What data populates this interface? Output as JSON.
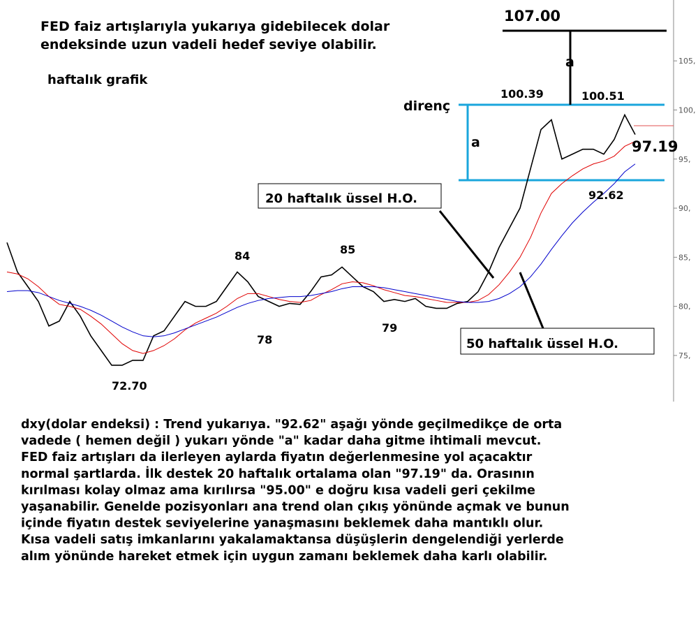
{
  "chart_data": {
    "type": "line",
    "title_lines": [
      "FED faiz artışlarıyla yukarıya gidebilecek dolar",
      "endeksinde uzun vadeli hedef seviye olabilir."
    ],
    "series": [
      {
        "color": "#000000",
        "values": [
          86.5,
          83.5,
          82,
          80.5,
          78,
          78.5,
          80.5,
          79,
          77,
          75.5,
          74,
          74,
          74.5,
          74.5,
          77,
          77.5,
          79,
          80.5,
          80,
          80,
          80.5,
          82,
          83.5,
          82.5,
          81,
          80.5,
          80,
          80.3,
          80.2,
          81.5,
          83,
          83.2,
          84,
          83,
          82,
          81.5,
          80.5,
          80.7,
          80.5,
          80.8,
          80,
          79.8,
          79.8,
          80.3,
          80.5,
          81.5,
          83.5,
          86,
          88,
          90,
          94,
          98,
          99,
          95,
          95.5,
          96,
          96,
          95.5,
          97,
          99.5,
          97.5
        ]
      },
      {
        "color": "#e00000",
        "values": [
          83.5,
          83.3,
          82.8,
          82,
          81,
          80.2,
          80,
          79.7,
          79,
          78.2,
          77.2,
          76.2,
          75.5,
          75.2,
          75.5,
          76,
          76.7,
          77.6,
          78.3,
          78.8,
          79.3,
          80,
          80.8,
          81.3,
          81.3,
          81,
          80.7,
          80.5,
          80.4,
          80.6,
          81.2,
          81.7,
          82.3,
          82.5,
          82.4,
          82.1,
          81.7,
          81.4,
          81.1,
          81,
          80.8,
          80.6,
          80.4,
          80.4,
          80.4,
          80.6,
          81.2,
          82.2,
          83.5,
          85,
          87,
          89.5,
          91.5,
          92.5,
          93.3,
          94,
          94.5,
          94.8,
          95.3,
          96.3,
          96.8
        ]
      },
      {
        "color": "#0000cc",
        "values": [
          81.5,
          81.6,
          81.6,
          81.4,
          81,
          80.6,
          80.3,
          80,
          79.6,
          79.1,
          78.5,
          77.9,
          77.4,
          77,
          76.9,
          77,
          77.3,
          77.7,
          78.1,
          78.5,
          78.9,
          79.4,
          79.9,
          80.3,
          80.6,
          80.8,
          80.9,
          81,
          81,
          81.1,
          81.3,
          81.5,
          81.8,
          82,
          82,
          82,
          81.9,
          81.7,
          81.5,
          81.3,
          81.1,
          80.9,
          80.7,
          80.5,
          80.4,
          80.4,
          80.5,
          80.8,
          81.3,
          82,
          83,
          84.3,
          85.8,
          87.2,
          88.5,
          89.6,
          90.6,
          91.5,
          92.5,
          93.7,
          94.5
        ]
      }
    ],
    "ylim": [
      70.3,
      111.2
    ],
    "yticks": [
      {
        "value": 75,
        "label": "75,"
      },
      {
        "value": 80,
        "label": "80,"
      },
      {
        "value": 85,
        "label": "85,"
      },
      {
        "value": 90,
        "label": "90,"
      },
      {
        "value": 95,
        "label": "95,"
      },
      {
        "value": 100,
        "label": "100,"
      },
      {
        "value": 105,
        "label": "105,"
      }
    ],
    "annotations": [
      "haftalık grafik",
      "direnç",
      "a",
      "a",
      "107.00",
      "100.39",
      "100.51",
      "97.19",
      "92.62",
      "20 haftalık üssel H.O.",
      "50 haftalık üssel H.O.",
      "84",
      "85",
      "78",
      "79",
      "72.70"
    ],
    "description_lines": [
      "dxy(dolar endeksi) : Trend yukarıya. \"92.62\" aşağı yönde geçilmedikçe de orta",
      "vadede ( hemen değil ) yukarı yönde \"a\" kadar daha gitme ihtimali mevcut.",
      "FED faiz artışları da ilerleyen aylarda fiyatın değerlenmesine yol açacaktır",
      "normal şartlarda. İlk destek 20 haftalık ortalama olan \"97.19\" da. Orasının",
      "kırılması kolay olmaz ama kırılırsa \"95.00\" e doğru kısa vadeli geri çekilme",
      "yaşanabilir. Genelde pozisyonları ana trend olan çıkış yönünde açmak ve bunun",
      "içinde fiyatın destek seviyelerine yanaşmasını beklemek daha mantıklı olur.",
      "Kısa vadeli satış imkanlarını yakalamaktansa düşüşlerin dengelendiği yerlerde",
      "alım yönünde hareket etmek için uygun zamanı beklemek daha karlı olabilir."
    ]
  }
}
